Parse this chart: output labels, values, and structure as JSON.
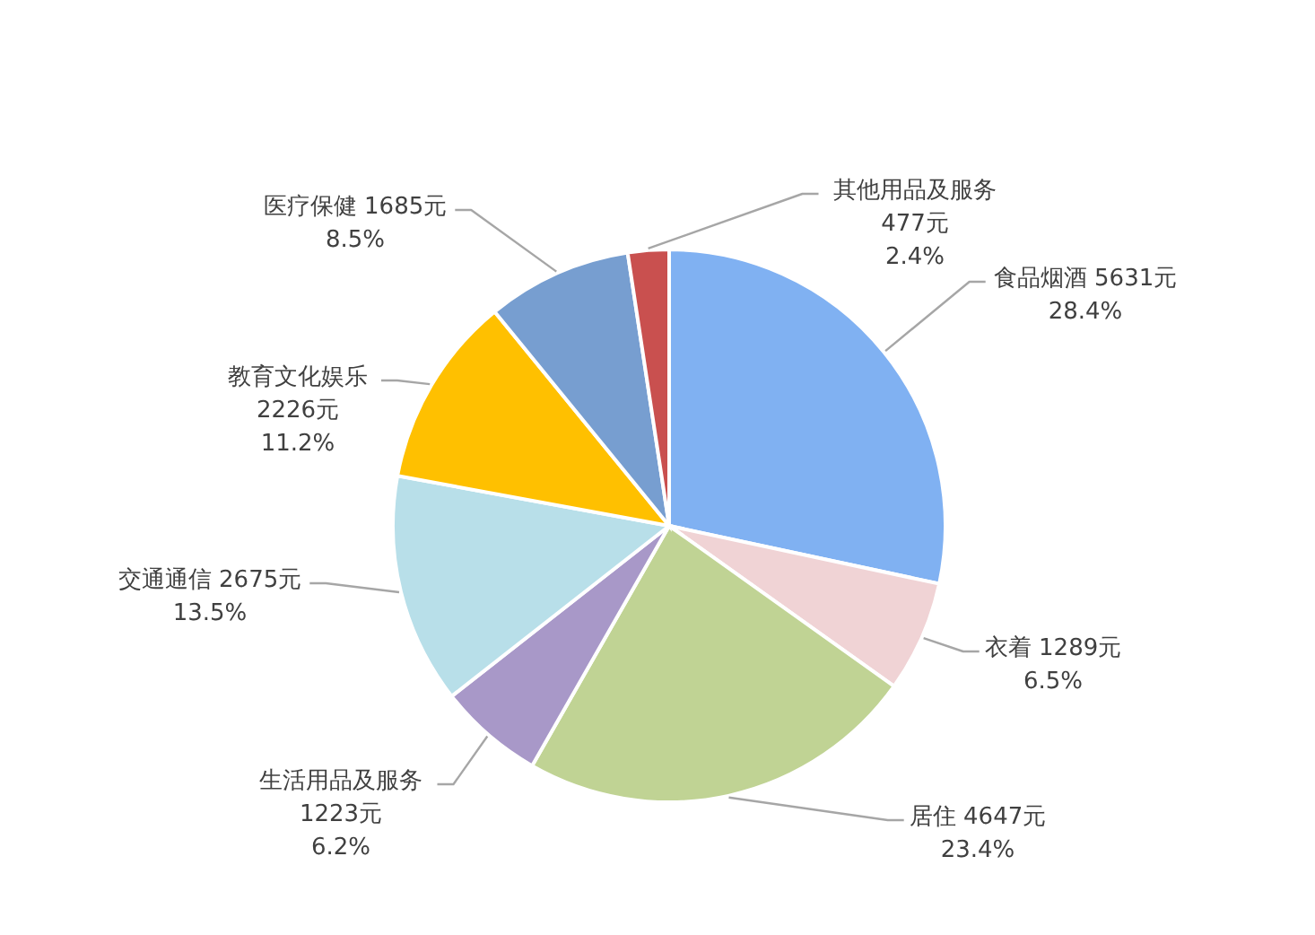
{
  "chart_data": {
    "type": "pie",
    "categories": [
      "食品烟酒",
      "衣着",
      "居住",
      "生活用品及服务",
      "交通通信",
      "教育文化娱乐",
      "医疗保健",
      "其他用品及服务"
    ],
    "values": [
      5631,
      1289,
      4647,
      1223,
      2675,
      2226,
      1685,
      477
    ],
    "colors": [
      "#80b1f2",
      "#f0d3d5",
      "#c0d394",
      "#a898c8",
      "#b8dfe9",
      "#ffc000",
      "#779ed0",
      "#c9504f"
    ],
    "value_labels": [
      "5631元\n28.4%",
      "1289元\n6.5%",
      "4647元\n23.4%",
      "1223元\n6.2%",
      "2675元\n13.5%",
      "2226元\n11.2%",
      "1685元\n8.5%",
      "477元\n2.4%"
    ]
  }
}
